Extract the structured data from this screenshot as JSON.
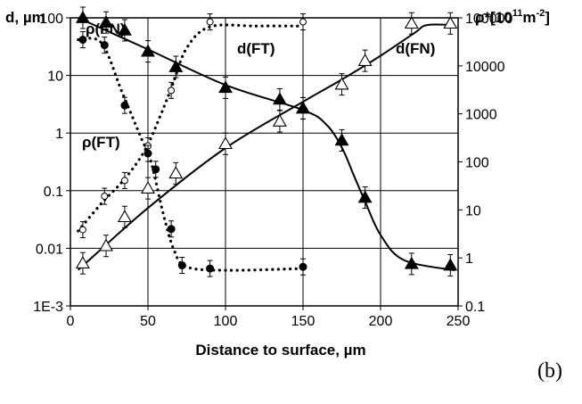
{
  "panel_label": "(b)",
  "chart_data": {
    "type": "scatter",
    "xlabel": "Distance to surface, µm",
    "ylabel_left": "d, µm",
    "ylabel_right": "ρ*[10¹¹m⁻²]",
    "ylabel_right_parts": {
      "base": "ρ*[10",
      "exp1": "11",
      "mid": "m",
      "exp2": "-2",
      "end": "]"
    },
    "xlim": [
      0,
      250
    ],
    "x_ticks": [
      "0",
      "50",
      "100",
      "150",
      "200",
      "250"
    ],
    "ylim_left": [
      0.001,
      100
    ],
    "y_ticks_left": [
      "1E-3",
      "0.01",
      "0.1",
      "1",
      "10",
      "100"
    ],
    "ylim_right": [
      0.1,
      100000
    ],
    "y_ticks_right": [
      "0.1",
      "1",
      "10",
      "100",
      "1000",
      "10000",
      "100000"
    ],
    "yscale": "log",
    "grid": true,
    "annotations": [
      "ρ(FN)",
      "d(FT)",
      "d(FN)",
      "ρ(FT)"
    ],
    "series": [
      {
        "name": "d(FT)",
        "axis": "left",
        "marker": "open-circle-small",
        "line": "dotted",
        "points": [
          [
            8,
            0.021
          ],
          [
            22,
            0.08
          ],
          [
            35,
            0.15
          ],
          [
            50,
            0.6
          ],
          [
            65,
            5.5
          ],
          [
            90,
            85
          ],
          [
            150,
            85
          ]
        ],
        "fit": [
          [
            5,
            0.02
          ],
          [
            20,
            0.06
          ],
          [
            35,
            0.16
          ],
          [
            48,
            0.5
          ],
          [
            58,
            2
          ],
          [
            66,
            7
          ],
          [
            75,
            30
          ],
          [
            90,
            70
          ],
          [
            120,
            72
          ],
          [
            150,
            72
          ]
        ]
      },
      {
        "name": "ρ(FT)",
        "axis": "right",
        "marker": "filled-circle-small",
        "line": "dotted",
        "points": [
          [
            8,
            35000
          ],
          [
            22,
            27000
          ],
          [
            35,
            1500
          ],
          [
            50,
            150
          ],
          [
            55,
            70
          ],
          [
            65,
            4
          ],
          [
            72,
            0.7
          ],
          [
            90,
            0.6
          ],
          [
            150,
            0.65
          ]
        ],
        "fit": [
          [
            5,
            35000
          ],
          [
            20,
            30000
          ],
          [
            33,
            3000
          ],
          [
            45,
            350
          ],
          [
            52,
            100
          ],
          [
            60,
            8
          ],
          [
            67,
            1.4
          ],
          [
            75,
            0.65
          ],
          [
            100,
            0.55
          ],
          [
            150,
            0.6
          ]
        ]
      },
      {
        "name": "d(FN)",
        "axis": "left",
        "marker": "open-triangle",
        "line": "solid",
        "points": [
          [
            8,
            0.0055
          ],
          [
            23,
            0.011
          ],
          [
            35,
            0.035
          ],
          [
            50,
            0.11
          ],
          [
            68,
            0.2
          ],
          [
            100,
            0.65
          ],
          [
            135,
            1.6
          ],
          [
            150,
            2.7
          ],
          [
            175,
            7
          ],
          [
            190,
            18
          ],
          [
            220,
            80
          ],
          [
            245,
            80
          ]
        ],
        "fit": [
          [
            5,
            0.0042
          ],
          [
            50,
            0.05
          ],
          [
            100,
            0.55
          ],
          [
            150,
            3.5
          ],
          [
            175,
            8.5
          ],
          [
            200,
            22
          ],
          [
            222,
            55
          ],
          [
            230,
            75
          ],
          [
            248,
            75
          ]
        ]
      },
      {
        "name": "ρ(FN)",
        "axis": "right",
        "marker": "filled-triangle",
        "line": "solid",
        "points": [
          [
            8,
            100000
          ],
          [
            23,
            80000
          ],
          [
            35,
            55000
          ],
          [
            50,
            20000
          ],
          [
            68,
            9500
          ],
          [
            100,
            3500
          ],
          [
            135,
            2000
          ],
          [
            150,
            1300
          ],
          [
            175,
            280
          ],
          [
            190,
            18
          ],
          [
            220,
            0.75
          ],
          [
            245,
            0.7
          ]
        ],
        "fit": [
          [
            5,
            100000
          ],
          [
            50,
            22000
          ],
          [
            100,
            4000
          ],
          [
            150,
            1200
          ],
          [
            165,
            600
          ],
          [
            175,
            200
          ],
          [
            183,
            50
          ],
          [
            190,
            15
          ],
          [
            200,
            3
          ],
          [
            215,
            0.9
          ],
          [
            248,
            0.55
          ]
        ]
      }
    ]
  }
}
